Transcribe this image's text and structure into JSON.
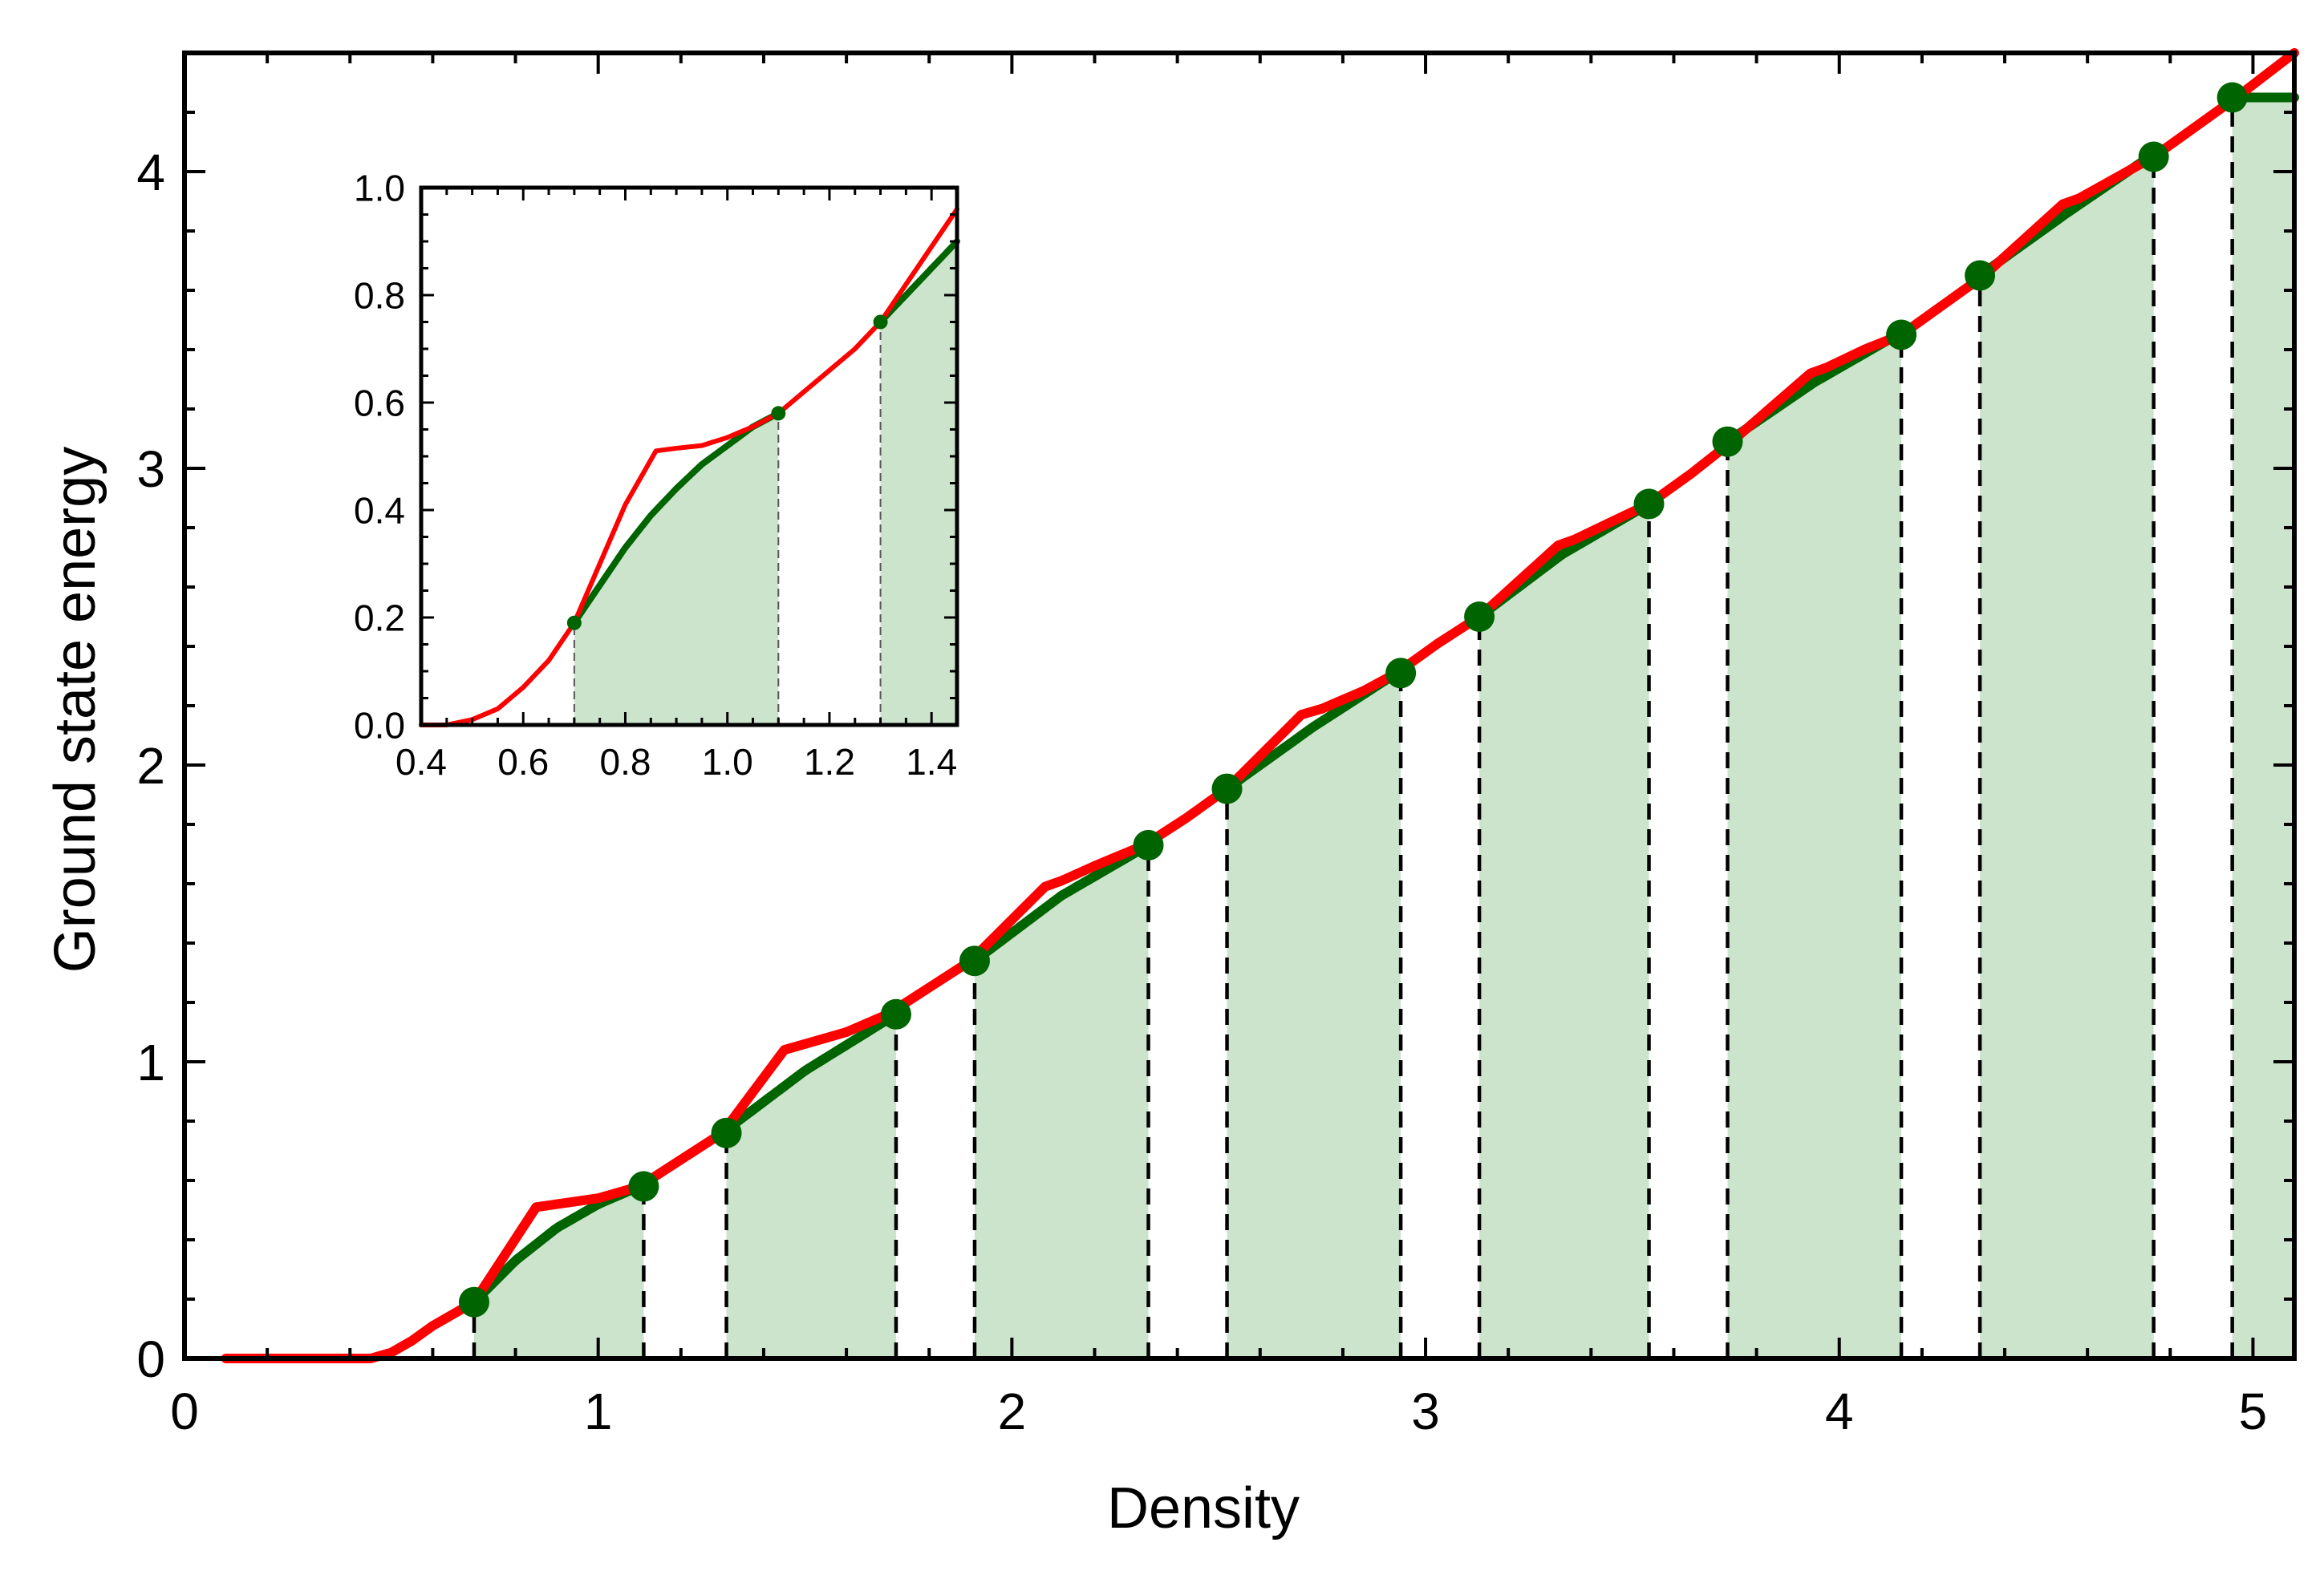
{
  "chart_data": [
    {
      "type": "line",
      "panel": "main",
      "xlabel": "Density",
      "ylabel": "Ground state energy",
      "xlim": [
        0,
        5.1
      ],
      "ylim": [
        0,
        4.4
      ],
      "xticks": [
        0,
        1,
        2,
        3,
        4,
        5
      ],
      "yticks": [
        0,
        1,
        2,
        3,
        4
      ],
      "grid": false,
      "series": [
        {
          "role": "red curve",
          "color": "#ff0000",
          "x": [
            0.1,
            0.45,
            0.5,
            0.55,
            0.6,
            0.65,
            0.7,
            0.85,
            0.9,
            1.0,
            1.1,
            1.2,
            1.3,
            1.45,
            1.5,
            1.6,
            1.7,
            1.8,
            1.9,
            2.08,
            2.12,
            2.2,
            2.32,
            2.42,
            2.52,
            2.7,
            2.75,
            2.85,
            2.93,
            3.03,
            3.13,
            3.32,
            3.36,
            3.45,
            3.54,
            3.64,
            3.74,
            3.93,
            3.97,
            4.06,
            4.15,
            4.25,
            4.35,
            4.54,
            4.58,
            4.67,
            4.76,
            4.86,
            4.96,
            5.1
          ],
          "y": [
            0.0,
            0.0,
            0.02,
            0.06,
            0.11,
            0.15,
            0.19,
            0.51,
            0.52,
            0.54,
            0.58,
            0.67,
            0.76,
            1.04,
            1.06,
            1.1,
            1.16,
            1.25,
            1.34,
            1.59,
            1.61,
            1.66,
            1.73,
            1.82,
            1.92,
            2.17,
            2.19,
            2.25,
            2.31,
            2.41,
            2.5,
            2.74,
            2.76,
            2.82,
            2.88,
            2.98,
            3.09,
            3.32,
            3.34,
            3.4,
            3.45,
            3.55,
            3.65,
            3.89,
            3.91,
            3.98,
            4.05,
            4.15,
            4.25,
            4.4
          ]
        },
        {
          "role": "green curve",
          "color": "#006400",
          "x": [
            0.7,
            0.8,
            0.9,
            1.0,
            1.1,
            1.3,
            1.5,
            1.72,
            1.91,
            2.12,
            2.33,
            2.52,
            2.73,
            2.93,
            3.13,
            3.33,
            3.54,
            3.73,
            3.94,
            4.14,
            4.34,
            4.55,
            4.75,
            4.95
          ],
          "y": [
            0.19,
            0.33,
            0.44,
            0.52,
            0.58,
            0.76,
            0.97,
            1.16,
            1.34,
            1.56,
            1.73,
            1.92,
            2.13,
            2.31,
            2.5,
            2.71,
            2.88,
            3.09,
            3.29,
            3.45,
            3.65,
            3.86,
            4.05,
            4.25
          ]
        }
      ],
      "markers": {
        "color": "#006400",
        "x": [
          0.7,
          1.11,
          1.31,
          1.72,
          1.91,
          2.33,
          2.52,
          2.94,
          3.13,
          3.54,
          3.73,
          4.15,
          4.34,
          4.76,
          4.95
        ],
        "y": [
          0.19,
          0.58,
          0.76,
          1.16,
          1.34,
          1.73,
          1.92,
          2.31,
          2.5,
          2.88,
          3.09,
          3.45,
          3.65,
          4.05,
          4.25
        ]
      },
      "shaded_regions": {
        "color": "#cce3cc",
        "intervals": [
          [
            0.7,
            1.11
          ],
          [
            1.31,
            1.72
          ],
          [
            1.91,
            2.33
          ],
          [
            2.52,
            2.94
          ],
          [
            3.13,
            3.54
          ],
          [
            3.73,
            4.15
          ],
          [
            4.34,
            4.76
          ],
          [
            4.95,
            5.1
          ]
        ]
      }
    },
    {
      "type": "line",
      "panel": "inset",
      "xlabel": "",
      "ylabel": "",
      "xlim": [
        0.4,
        1.45
      ],
      "ylim": [
        0.0,
        1.0
      ],
      "xticks": [
        "0.4",
        "0.6",
        "0.8",
        "1.0",
        "1.2",
        "1.4"
      ],
      "yticks": [
        "0.0",
        "0.2",
        "0.4",
        "0.6",
        "0.8",
        "1.0"
      ],
      "grid": false,
      "series": [
        {
          "role": "red curve",
          "color": "#ff0000",
          "x": [
            0.4,
            0.45,
            0.5,
            0.55,
            0.6,
            0.65,
            0.7,
            0.75,
            0.8,
            0.86,
            0.9,
            0.95,
            1.0,
            1.05,
            1.1,
            1.15,
            1.2,
            1.25,
            1.3,
            1.35,
            1.4,
            1.45
          ],
          "y": [
            0.0,
            0.0,
            0.01,
            0.03,
            0.07,
            0.12,
            0.19,
            0.3,
            0.41,
            0.51,
            0.515,
            0.52,
            0.535,
            0.555,
            0.58,
            0.62,
            0.66,
            0.7,
            0.75,
            0.82,
            0.89,
            0.96
          ]
        },
        {
          "role": "green curve",
          "color": "#006400",
          "x": [
            0.7,
            0.75,
            0.8,
            0.85,
            0.9,
            0.95,
            1.0,
            1.05,
            1.1,
            1.3,
            1.35,
            1.4,
            1.45
          ],
          "y": [
            0.19,
            0.26,
            0.33,
            0.39,
            0.44,
            0.485,
            0.52,
            0.555,
            0.58,
            0.75,
            0.8,
            0.85,
            0.9
          ]
        }
      ],
      "markers": {
        "color": "#006400",
        "x": [
          0.7,
          1.1,
          1.3
        ],
        "y": [
          0.19,
          0.58,
          0.75
        ]
      },
      "shaded_regions": {
        "color": "#cce3cc",
        "intervals": [
          [
            0.7,
            1.1
          ],
          [
            1.3,
            1.45
          ]
        ]
      }
    }
  ]
}
